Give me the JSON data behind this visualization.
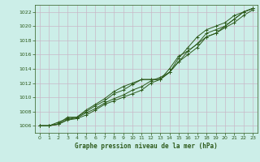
{
  "title": "Graphe pression niveau de la mer (hPa)",
  "bg_color": "#cceee8",
  "grid_color": "#c8b8c8",
  "line_color": "#2d5a1b",
  "marker_color": "#2d5a1b",
  "xmin": -0.5,
  "xmax": 23.5,
  "ymin": 1005.0,
  "ymax": 1023.0,
  "yticks": [
    1006,
    1008,
    1010,
    1012,
    1014,
    1016,
    1018,
    1020,
    1022
  ],
  "xticks": [
    0,
    1,
    2,
    3,
    4,
    5,
    6,
    7,
    8,
    9,
    10,
    11,
    12,
    13,
    14,
    15,
    16,
    17,
    18,
    19,
    20,
    21,
    22,
    23
  ],
  "series": [
    [
      1006.0,
      1006.0,
      1006.2,
      1006.8,
      1007.0,
      1007.5,
      1008.2,
      1009.0,
      1009.5,
      1010.0,
      1010.5,
      1011.0,
      1012.0,
      1012.5,
      1013.5,
      1015.0,
      1016.5,
      1017.5,
      1019.0,
      1019.5,
      1020.0,
      1021.0,
      1022.0,
      1022.5
    ],
    [
      1006.0,
      1006.0,
      1006.2,
      1006.9,
      1007.1,
      1007.8,
      1008.4,
      1009.2,
      1009.8,
      1010.3,
      1011.0,
      1011.5,
      1012.3,
      1012.8,
      1013.5,
      1015.5,
      1017.0,
      1018.5,
      1019.5,
      1020.0,
      1020.5,
      1021.5,
      1022.0,
      1022.5
    ],
    [
      1006.0,
      1006.0,
      1006.5,
      1007.0,
      1007.2,
      1008.0,
      1008.8,
      1009.5,
      1010.5,
      1011.0,
      1011.8,
      1012.5,
      1012.5,
      1012.5,
      1014.0,
      1015.8,
      1016.5,
      1017.5,
      1018.5,
      1019.0,
      1019.8,
      1020.5,
      1021.5,
      1022.3
    ],
    [
      1006.0,
      1006.0,
      1006.3,
      1007.2,
      1007.2,
      1008.2,
      1009.0,
      1009.8,
      1010.8,
      1011.5,
      1012.0,
      1012.5,
      1012.5,
      1012.5,
      1013.5,
      1015.0,
      1016.0,
      1017.0,
      1018.5,
      1019.0,
      1020.0,
      1021.0,
      1022.0,
      1022.5
    ]
  ]
}
